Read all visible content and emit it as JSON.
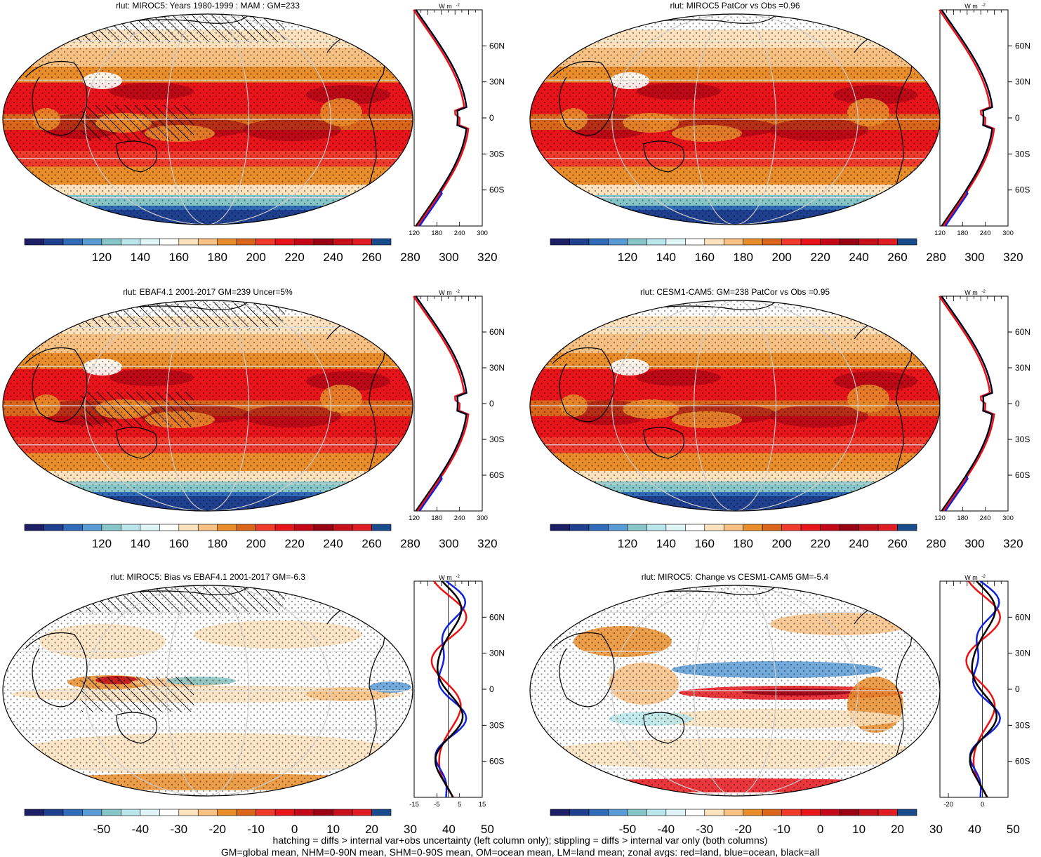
{
  "panels": [
    {
      "id": "p1",
      "title": "rlut: MIROC5: Years 1980-1999 : MAM : GM=233",
      "kind": "abs",
      "hatch": "left",
      "cb_labels": [
        "120",
        "140",
        "160",
        "180",
        "200",
        "220",
        "240",
        "260",
        "280",
        "300",
        "320"
      ],
      "zonal_ticks": [
        "120",
        "180",
        "240",
        "300"
      ],
      "zonal_range": [
        120,
        300
      ]
    },
    {
      "id": "p2",
      "title": "rlut: MIROC5 PatCor vs Obs =0.96",
      "kind": "abs",
      "hatch": "none",
      "cb_labels": [
        "120",
        "140",
        "160",
        "180",
        "200",
        "220",
        "240",
        "260",
        "280",
        "300",
        "320"
      ],
      "zonal_ticks": [
        "120",
        "180",
        "240",
        "300"
      ],
      "zonal_range": [
        120,
        300
      ]
    },
    {
      "id": "p3",
      "title": "rlut: EBAF4.1 2001-2017 GM=239 Uncer=5%",
      "kind": "abs",
      "hatch": "left",
      "cb_labels": [
        "120",
        "140",
        "160",
        "180",
        "200",
        "220",
        "240",
        "260",
        "280",
        "300",
        "320"
      ],
      "zonal_ticks": [
        "120",
        "180",
        "240",
        "300"
      ],
      "zonal_range": [
        120,
        300
      ]
    },
    {
      "id": "p4",
      "title": "rlut: CESM1-CAM5: GM=238 PatCor vs Obs =0.95",
      "kind": "abs",
      "hatch": "none",
      "cb_labels": [
        "120",
        "140",
        "160",
        "180",
        "200",
        "220",
        "240",
        "260",
        "280",
        "300",
        "320"
      ],
      "zonal_ticks": [
        "120",
        "180",
        "240",
        "300"
      ],
      "zonal_range": [
        120,
        300
      ]
    },
    {
      "id": "p5",
      "title": "rlut: MIROC5: Bias vs EBAF4.1 2001-2017 GM=-6.3",
      "kind": "diff",
      "hatch": "left",
      "cb_labels": [
        "-50",
        "-40",
        "-30",
        "-20",
        "-10",
        "0",
        "10",
        "20",
        "30",
        "40",
        "50"
      ],
      "zonal_ticks": [
        "-15",
        "-5",
        "5",
        "15"
      ],
      "zonal_range": [
        -15,
        15
      ]
    },
    {
      "id": "p6",
      "title": "rlut: MIROC5: Change vs CESM1-CAM5 GM=-5.4",
      "kind": "diff",
      "hatch": "none",
      "cb_labels": [
        "-50",
        "-40",
        "-30",
        "-20",
        "-10",
        "0",
        "10",
        "20",
        "30",
        "40",
        "50"
      ],
      "zonal_ticks": [
        "-20",
        "0"
      ],
      "zonal_range": [
        -25,
        15
      ]
    }
  ],
  "lat_labels": [
    "60N",
    "30N",
    "0",
    "30S",
    "60S"
  ],
  "units_label": "W m",
  "units_exp": "-2",
  "footer": {
    "line1": "hatching = diffs > internal var+obs uncertainty (left column only); stippling = diffs > internal var only (both columns)",
    "line2": "GM=global mean, NHM=0-90N mean, SHM=0-90S mean, OM=ocean mean, LM=land mean; zonal avgs: red=land, blue=ocean, black=all"
  },
  "colors": {
    "abs_scale": [
      "#1c1f66",
      "#1f3f8f",
      "#2f6bb8",
      "#5a9bd6",
      "#86c6c8",
      "#b8e6ea",
      "#dff4f6",
      "#ffffff",
      "#fde2bd",
      "#f8c184",
      "#e98d2b",
      "#d9661a",
      "#ef3a2c",
      "#e8141a",
      "#c4081a",
      "#990014",
      "#c8101c",
      "#e01d24",
      "#194c8c"
    ],
    "diff_scale": [
      "#1c1f66",
      "#1f3f8f",
      "#2f6bb8",
      "#5a9bd6",
      "#86c6c8",
      "#b8e6ea",
      "#dff4f6",
      "#ffffff",
      "#fde2bd",
      "#f8c184",
      "#e98d2b",
      "#d9661a",
      "#ef3a2c",
      "#e8141a",
      "#c4081a",
      "#990014",
      "#c8101c",
      "#e01d24",
      "#194c8c"
    ],
    "land_line": "#ee1111",
    "ocean_line": "#1122dd",
    "all_line": "#000000"
  }
}
